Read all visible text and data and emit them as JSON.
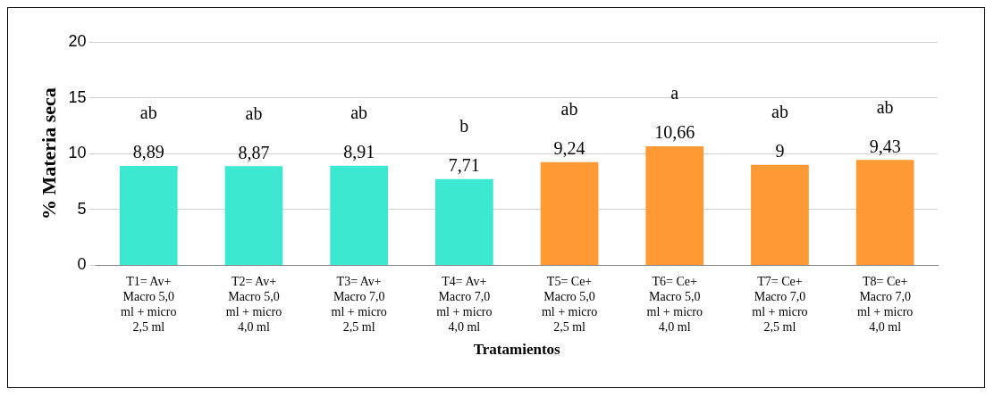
{
  "chart_data": {
    "type": "bar",
    "xlabel": "Tratamientos",
    "ylabel": "% Materia seca",
    "categories": [
      "T1= Av+ Macro 5,0 ml + micro 2,5 ml",
      "T2= Av+ Macro 5,0 ml + micro 4,0 ml",
      "T3= Av+ Macro 7,0 ml + micro 2,5 ml",
      "T4= Av+ Macro 7,0 ml + micro 4,0 ml",
      "T5= Ce+ Macro 5,0 ml + micro 2,5 ml",
      "T6= Ce+ Macro 5,0 ml + micro 4,0 ml",
      "T7= Ce+ Macro 7,0 ml + micro 2,5 ml",
      "T8= Ce+ Macro 7,0 ml + micro 4,0 ml"
    ],
    "values": [
      8.89,
      8.87,
      8.91,
      7.71,
      9.24,
      10.66,
      9,
      9.43
    ],
    "value_labels": [
      "8,89",
      "8,87",
      "8,91",
      "7,71",
      "9,24",
      "10,66",
      "9",
      "9,43"
    ],
    "colors": [
      "#3de8d0",
      "#3de8d0",
      "#3de8d0",
      "#3de8d0",
      "#ff9933",
      "#ff9933",
      "#ff9933",
      "#ff9933"
    ],
    "ylim": [
      0,
      20
    ],
    "yticks": [
      0,
      5,
      10,
      15,
      20
    ],
    "grid": "y",
    "legend": false,
    "annotations": [
      "ab",
      "ab",
      "ab",
      "b",
      "ab",
      "a",
      "ab",
      "ab"
    ]
  }
}
